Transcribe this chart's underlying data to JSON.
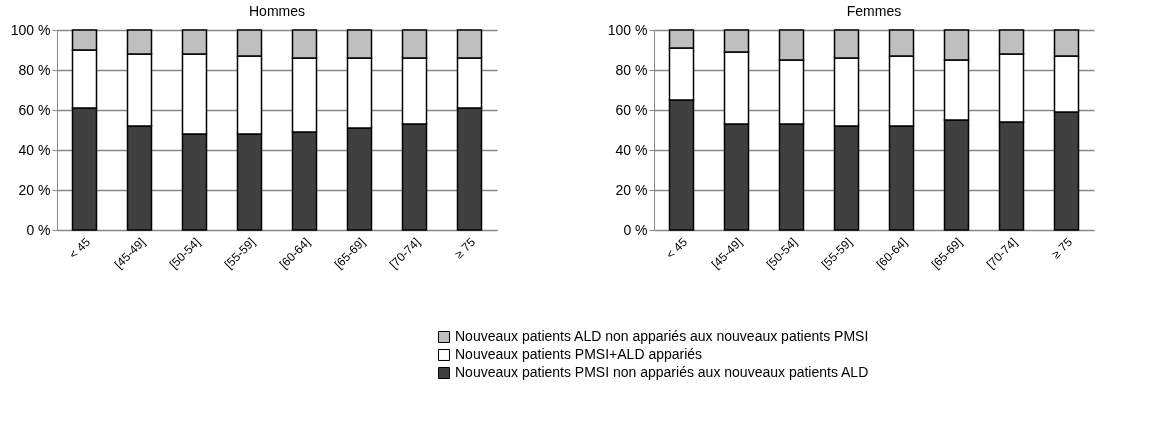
{
  "chart_data": [
    {
      "type": "bar",
      "title": "Hommes",
      "stacked": true,
      "legend": "bottom",
      "grid": "y",
      "categories": [
        "< 45",
        "[45-49]",
        "[50-54]",
        "[55-59]",
        "[60-64]",
        "[65-69]",
        "[70-74]",
        "≥ 75"
      ],
      "series": [
        {
          "name": "Nouveaux patients PMSI non appariés aux nouveaux patients ALD",
          "color": "#404040",
          "values": [
            61,
            52,
            48,
            48,
            49,
            51,
            53,
            61
          ]
        },
        {
          "name": "Nouveaux patients PMSI+ALD appariés",
          "color": "#ffffff",
          "values": [
            29,
            36,
            40,
            39,
            37,
            35,
            33,
            25
          ]
        },
        {
          "name": "Nouveaux patients ALD non appariés aux nouveaux patients PMSI",
          "color": "#bfbfbf",
          "values": [
            10,
            12,
            12,
            13,
            14,
            14,
            14,
            14
          ]
        }
      ],
      "ylim": [
        0,
        100
      ],
      "yticks": [
        {
          "value": 0,
          "label": "0 %"
        },
        {
          "value": 20,
          "label": "20 %"
        },
        {
          "value": 40,
          "label": "40 %"
        },
        {
          "value": 60,
          "label": "60 %"
        },
        {
          "value": 80,
          "label": "80 %"
        },
        {
          "value": 100,
          "label": "100 %"
        }
      ]
    },
    {
      "type": "bar",
      "title": "Femmes",
      "stacked": true,
      "legend": "bottom",
      "grid": "y",
      "categories": [
        "< 45",
        "[45-49]",
        "[50-54]",
        "[55-59]",
        "[60-64]",
        "[65-69]",
        "[70-74]",
        "≥ 75"
      ],
      "series": [
        {
          "name": "Nouveaux patients PMSI non appariés aux nouveaux patients ALD",
          "color": "#404040",
          "values": [
            65,
            53,
            53,
            52,
            52,
            55,
            54,
            59
          ]
        },
        {
          "name": "Nouveaux patients PMSI+ALD appariés",
          "color": "#ffffff",
          "values": [
            26,
            36,
            32,
            34,
            35,
            30,
            34,
            28
          ]
        },
        {
          "name": "Nouveaux patients ALD non appariés aux nouveaux patients PMSI",
          "color": "#bfbfbf",
          "values": [
            9,
            11,
            15,
            14,
            13,
            15,
            12,
            13
          ]
        }
      ],
      "ylim": [
        0,
        100
      ],
      "yticks": [
        {
          "value": 0,
          "label": "0 %"
        },
        {
          "value": 20,
          "label": "20 %"
        },
        {
          "value": 40,
          "label": "40 %"
        },
        {
          "value": 60,
          "label": "60 %"
        },
        {
          "value": 80,
          "label": "80 %"
        },
        {
          "value": 100,
          "label": "100 %"
        }
      ]
    }
  ]
}
